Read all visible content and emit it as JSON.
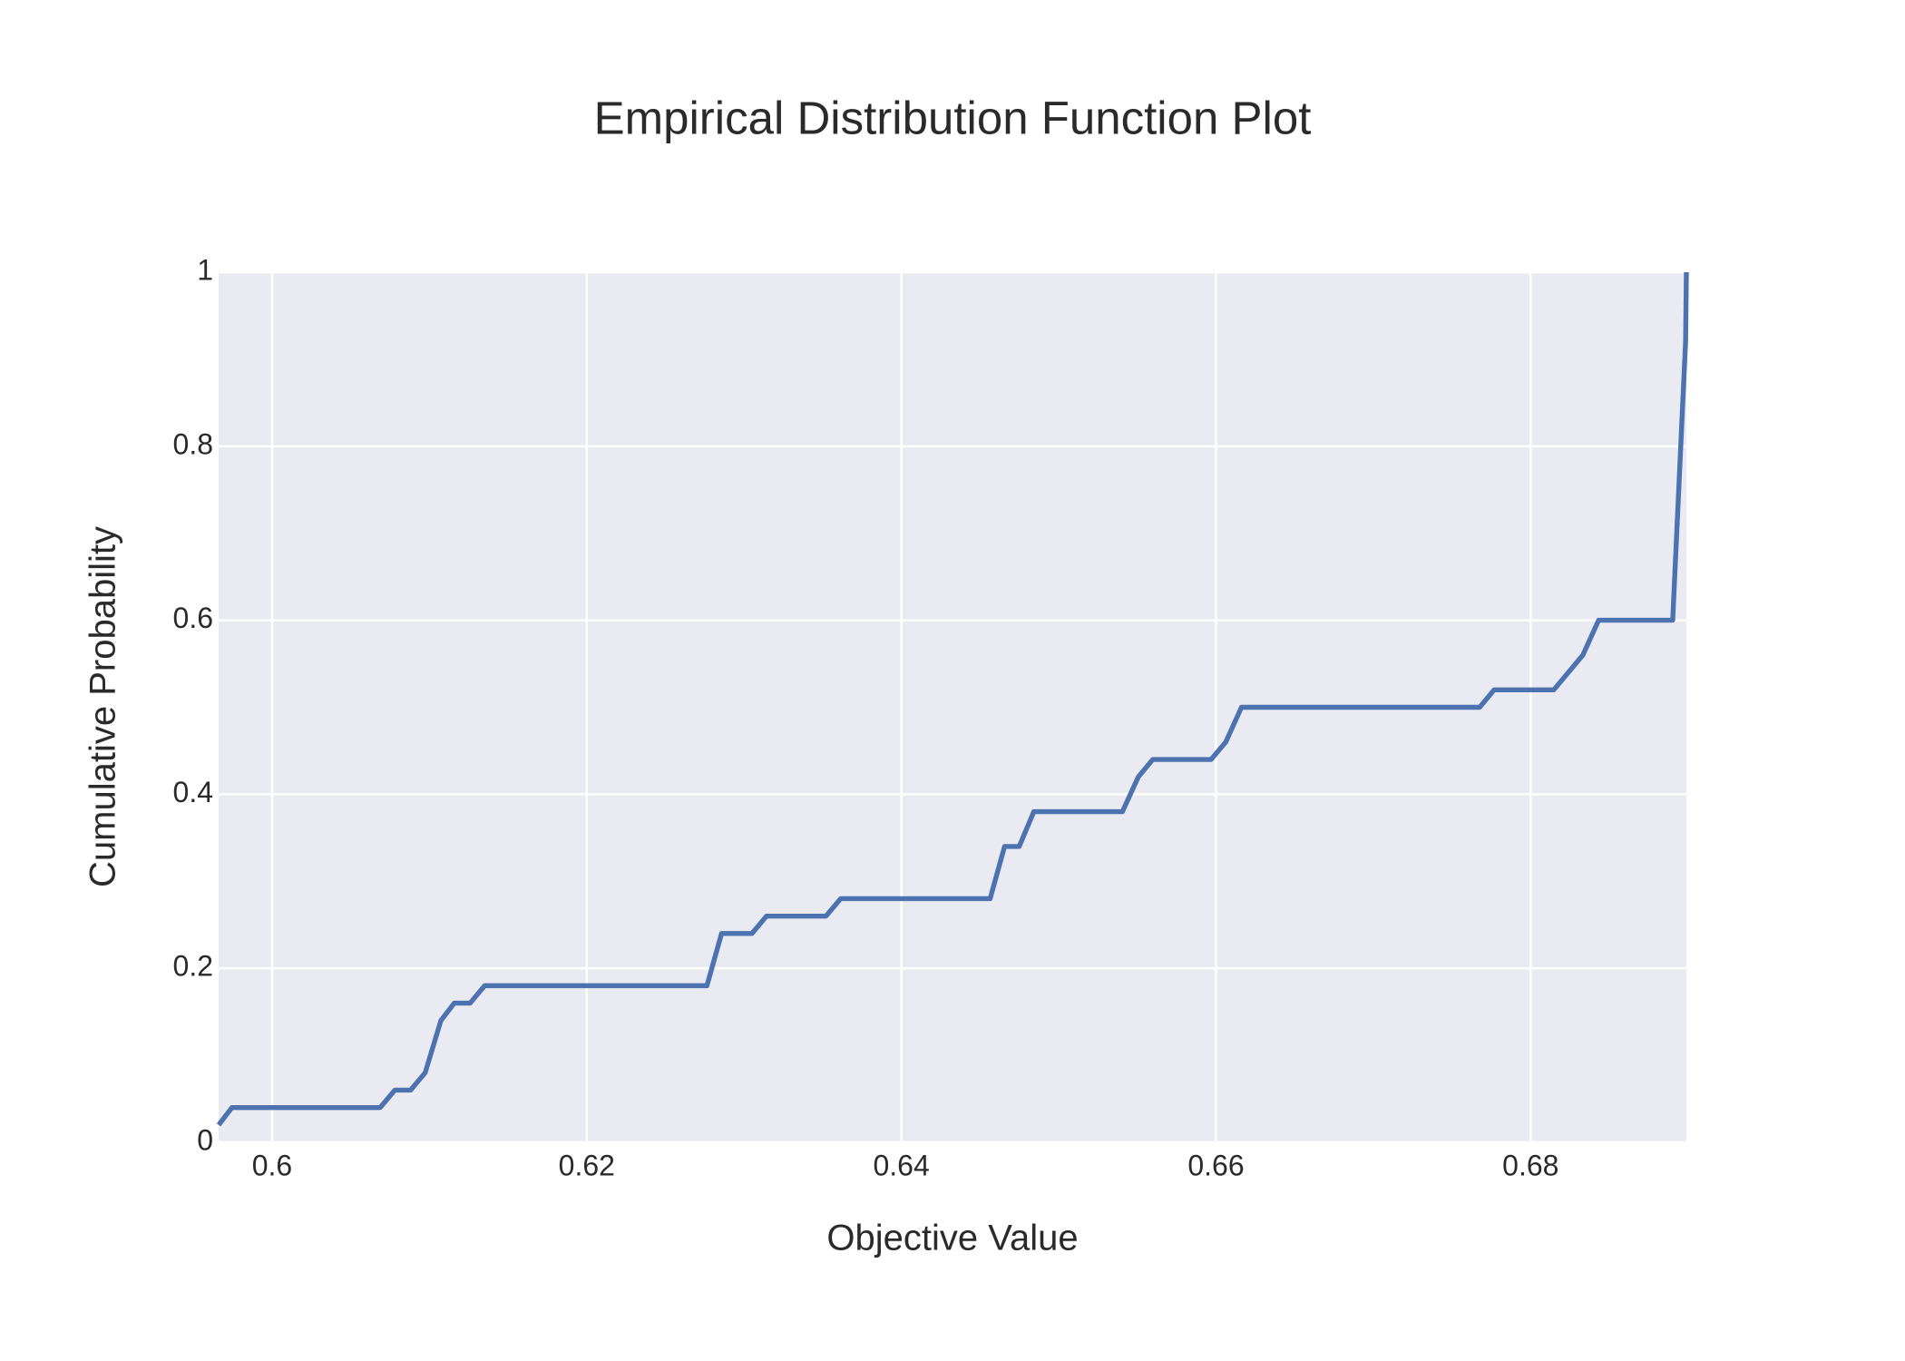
{
  "chart_data": {
    "type": "line",
    "title": "Empirical Distribution Function Plot",
    "x_label": "Objective Value",
    "y_label": "Cumulative Probability",
    "color": "#4c72b0",
    "grid": true,
    "x": [
      0.5966,
      0.59745,
      0.60687,
      0.6078,
      0.6088,
      0.60973,
      0.61073,
      0.61158,
      0.61259,
      0.61351,
      0.62764,
      0.62857,
      0.6305,
      0.63143,
      0.63521,
      0.63614,
      0.64564,
      0.64656,
      0.64749,
      0.64842,
      0.65405,
      0.65506,
      0.65598,
      0.65969,
      0.66062,
      0.66162,
      0.67676,
      0.67768,
      0.68147,
      0.68332,
      0.68432,
      0.68903,
      0.68985,
      0.6899
    ],
    "values": [
      0.02,
      0.04,
      0.04,
      0.06,
      0.06,
      0.08,
      0.14,
      0.16,
      0.16,
      0.18,
      0.18,
      0.24,
      0.24,
      0.26,
      0.26,
      0.28,
      0.28,
      0.34,
      0.34,
      0.38,
      0.38,
      0.42,
      0.44,
      0.44,
      0.46,
      0.5,
      0.5,
      0.52,
      0.52,
      0.56,
      0.6,
      0.6,
      0.92,
      1
    ],
    "xlim": [
      0.5966,
      0.6899
    ],
    "ylim": [
      0,
      1
    ],
    "xticks": [
      0.6,
      0.62,
      0.64,
      0.66,
      0.68
    ],
    "yticks": [
      0,
      0.2,
      0.4,
      0.6,
      0.8,
      1
    ]
  }
}
